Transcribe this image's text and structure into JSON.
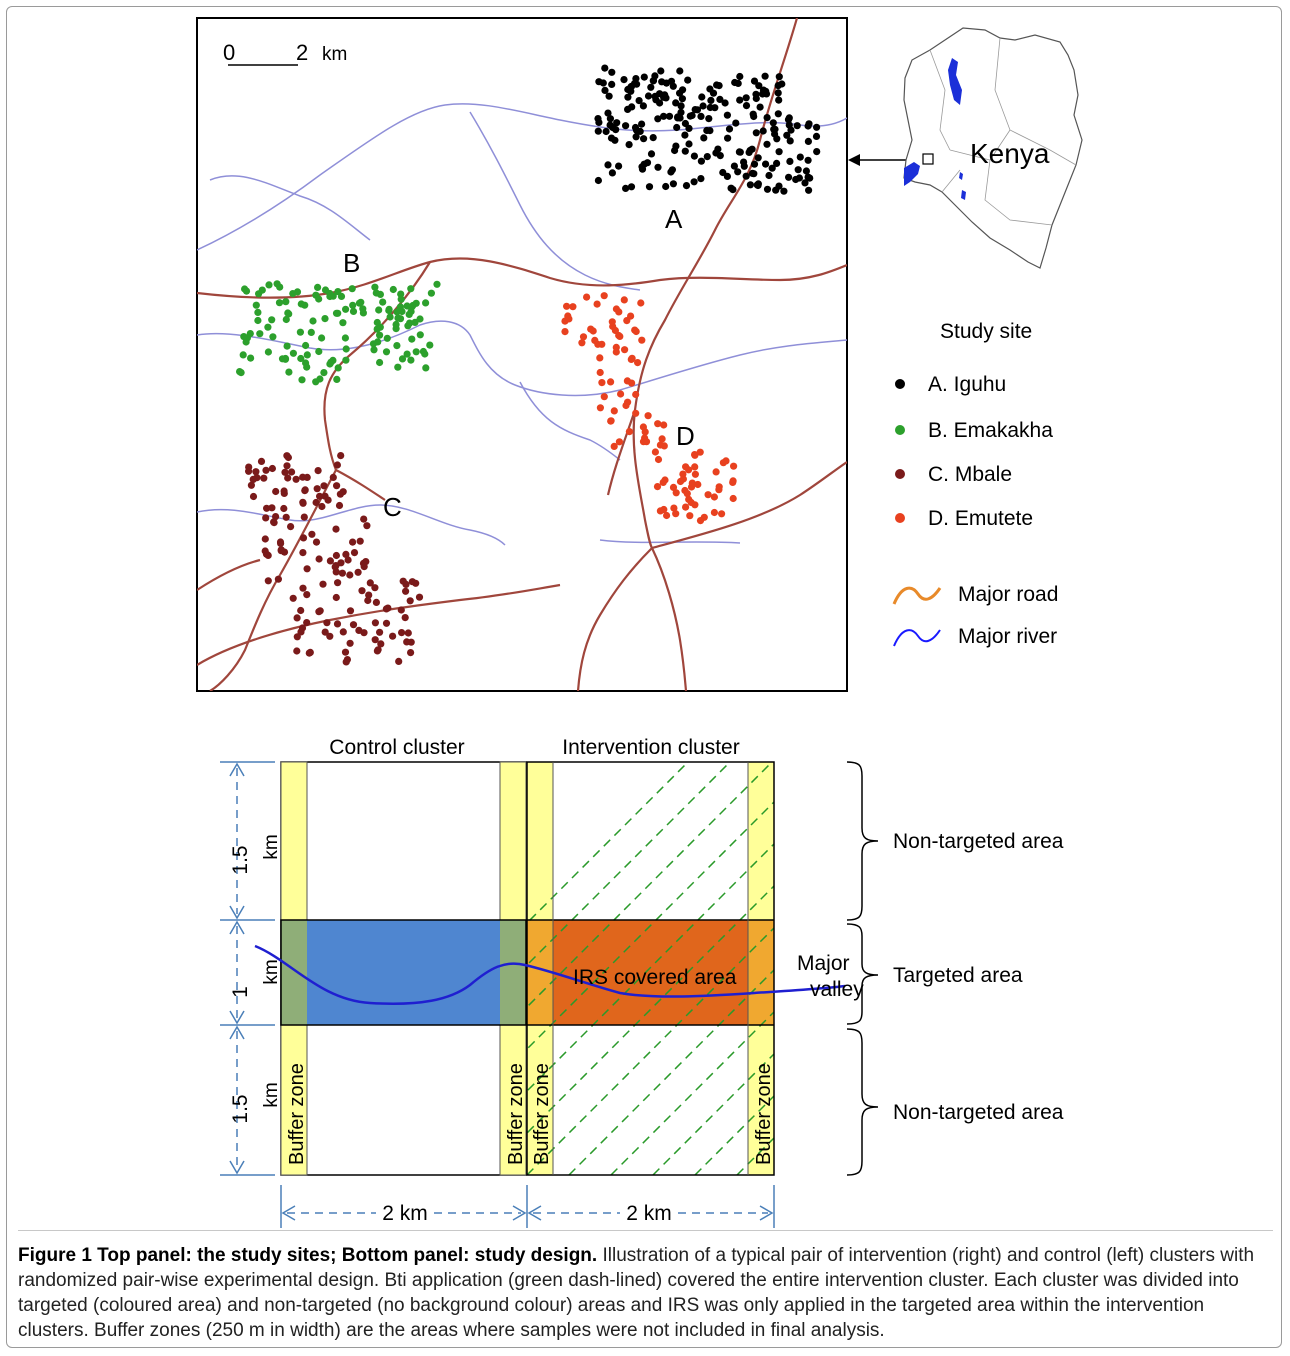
{
  "map": {
    "scalebar": {
      "zero": "0",
      "two": "2",
      "unit": "km"
    },
    "site_letters": {
      "a": "A",
      "b": "B",
      "c": "C",
      "d": "D"
    },
    "country_label": "Kenya",
    "legend": {
      "title": "Study site",
      "sites": [
        {
          "label": "A. Iguhu",
          "color": "#000000"
        },
        {
          "label": "B. Emakakha",
          "color": "#2ca02c"
        },
        {
          "label": "C. Mbale",
          "color": "#7a1a1a"
        },
        {
          "label": "D. Emutete",
          "color": "#e8411f"
        }
      ],
      "road_label": "Major road",
      "road_color": "#e88a2a",
      "river_label": "Major river",
      "river_color": "#1a1aff"
    },
    "colors": {
      "map_road": "#a0463c",
      "map_river": "#8f8fd8",
      "kenya_water": "#1b2fd8"
    }
  },
  "design": {
    "control_title": "Control cluster",
    "intervention_title": "Intervention cluster",
    "buffer_label": "Buffer zone",
    "irs_label": "IRS covered area",
    "valley_line1": "Major",
    "valley_line2": "valley",
    "dim_top_num": "1.5",
    "dim_top_unit": "km",
    "dim_mid_num": "1",
    "dim_mid_unit": "km",
    "dim_bot_num": "1.5",
    "dim_bot_unit": "km",
    "width_left": "2 km",
    "width_right": "2 km",
    "area_top": "Non-targeted area",
    "area_mid": "Targeted area",
    "area_bot": "Non-targeted area",
    "colors": {
      "buffer": "#ffff99",
      "control_targeted": "#4f86d0",
      "irs": "#e0661c",
      "bti_lines": "#2a9a2a",
      "valley_line": "#1f1fd0",
      "dim_arrows": "#4a7fb8"
    }
  },
  "caption": {
    "lead": "Figure 1 Top panel: the study sites; Bottom panel: study design.",
    "text": "Illustration of a typical pair of intervention (right) and control (left) clusters with randomized pair-wise experimental design. Bti application (green dash-lined) covered the entire intervention cluster. Each cluster was divided into targeted (coloured area) and non-targeted (no background colour) areas and IRS was only applied in the targeted area within the intervention clusters. Buffer zones (250 m in width) are the areas where samples were not included in final analysis."
  }
}
